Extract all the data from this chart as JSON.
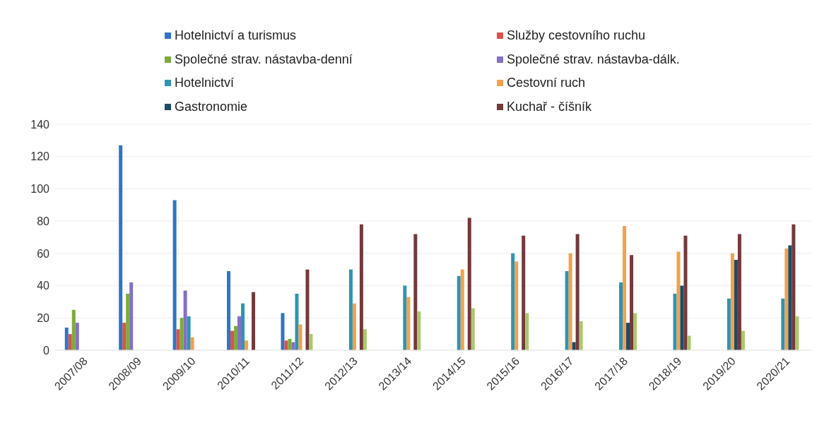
{
  "chart_data": {
    "type": "bar",
    "categories": [
      "2007/08",
      "2008/09",
      "2009/10",
      "2010/11",
      "2011/12",
      "2012/13",
      "2013/14",
      "2014/15",
      "2015/16",
      "2016/17",
      "2017/18",
      "2018/19",
      "2019/20",
      "2020/21"
    ],
    "series": [
      {
        "name": "Hotelnictví a turismus",
        "color": "#2e75c6",
        "values": [
          14,
          127,
          93,
          49,
          23,
          null,
          null,
          null,
          null,
          null,
          null,
          null,
          null,
          null
        ]
      },
      {
        "name": "Služby cestovního ruchu",
        "color": "#d9534a",
        "values": [
          10,
          17,
          13,
          12,
          6,
          null,
          null,
          null,
          null,
          null,
          null,
          null,
          null,
          null
        ]
      },
      {
        "name": "Společné strav. nástavba-denní",
        "color": "#7cab3c",
        "values": [
          25,
          35,
          20,
          15,
          7,
          null,
          null,
          null,
          null,
          null,
          null,
          null,
          null,
          null
        ]
      },
      {
        "name": "Společné strav. nástavba-dálk.",
        "color": "#8470c4",
        "values": [
          17,
          42,
          37,
          21,
          5,
          null,
          null,
          null,
          null,
          null,
          null,
          null,
          null,
          null
        ]
      },
      {
        "name": "Hotelnictví",
        "color": "#2e94b3",
        "values": [
          null,
          null,
          21,
          29,
          35,
          50,
          40,
          46,
          60,
          49,
          42,
          35,
          32,
          32
        ]
      },
      {
        "name": "Cestovní ruch",
        "color": "#f5a04a",
        "values": [
          null,
          null,
          8,
          6,
          16,
          29,
          33,
          50,
          55,
          60,
          77,
          61,
          60,
          63
        ]
      },
      {
        "name": "Gastronomie",
        "color": "#1d4b66",
        "values": [
          null,
          null,
          null,
          null,
          null,
          null,
          null,
          null,
          null,
          5,
          17,
          40,
          56,
          65
        ]
      },
      {
        "name": "Kuchař - číšník",
        "color": "#74393c",
        "values": [
          null,
          null,
          null,
          36,
          50,
          78,
          72,
          82,
          71,
          72,
          59,
          71,
          72,
          78
        ]
      },
      {
        "color": "#a9c96b",
        "values": [
          null,
          null,
          null,
          null,
          10,
          13,
          24,
          26,
          23,
          18,
          23,
          9,
          12,
          21
        ]
      }
    ],
    "ylim": [
      0,
      140
    ],
    "yticks": [
      0,
      20,
      40,
      60,
      80,
      100,
      120,
      140
    ],
    "grid": "y",
    "legend": "top"
  }
}
